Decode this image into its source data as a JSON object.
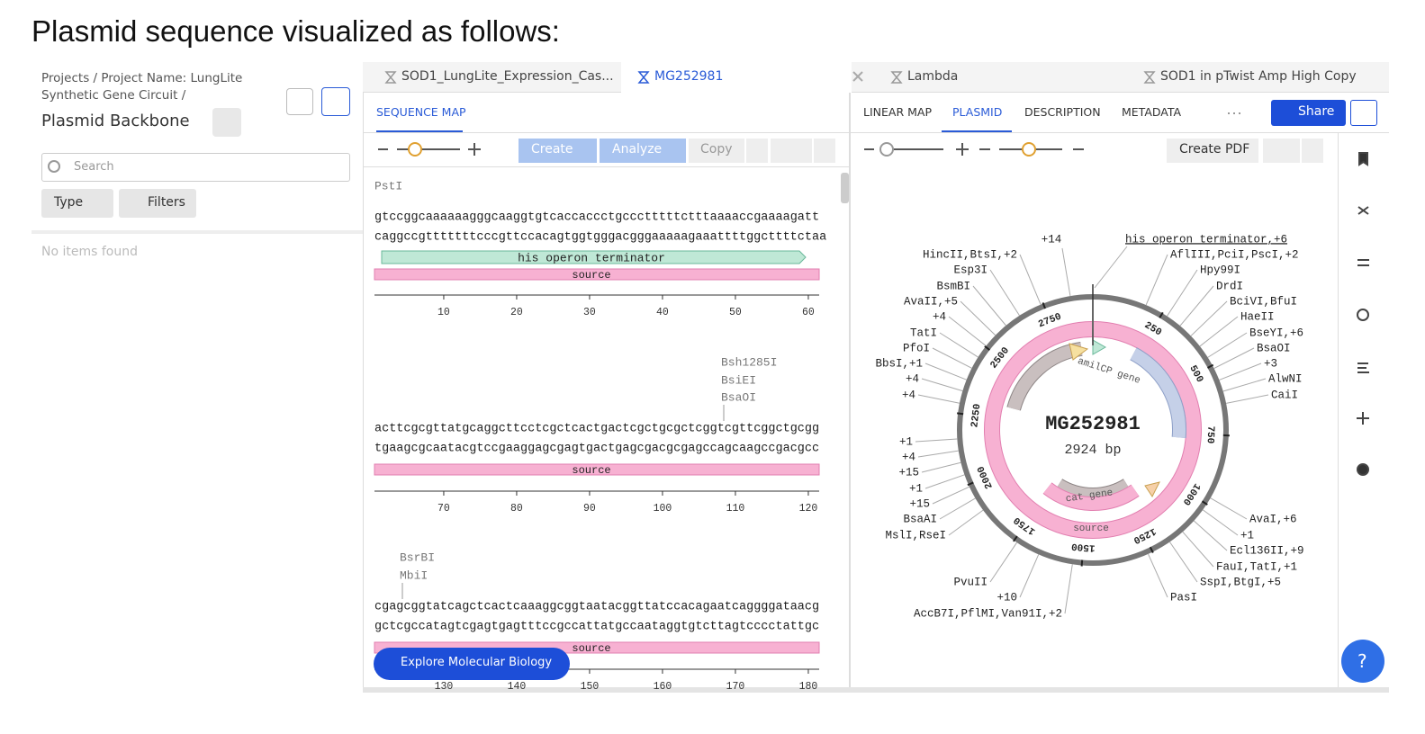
{
  "heading": "Plasmid sequence visualized as follows:",
  "sidebar": {
    "breadcrumb": "Projects / Project Name: LungLite Synthetic Gene Circuit /",
    "title": "Plasmid Backbone",
    "search_placeholder": "Search",
    "buttons": [
      "Type",
      "Filters"
    ],
    "empty_message": "No items found"
  },
  "tabs": [
    "SOD1_LungLite_Expression_Cas...",
    "MG252981",
    "Lambda",
    "SOD1 in pTwist Amp High Copy"
  ],
  "sequence_panel": {
    "tab": "SEQUENCE MAP",
    "toolbar": [
      "Create",
      "Analyze",
      "Copy"
    ],
    "rows": [
      {
        "enzymes": [
          "PstI"
        ],
        "top": "gtccggcaaaaaagggcaaggtgtcaccaccctgccctttttctttaaaaccgaaaagatt",
        "bottom": "caggccgtttttttcccgttccacagtggtgggacgggaaaaagaaattttggcttttctaa",
        "features": [
          {
            "label": "his operon terminator",
            "color": "#bfe8d6"
          },
          {
            "label": "source",
            "color": "#f7b1d2"
          }
        ],
        "ruler": [
          10,
          20,
          30,
          40,
          50,
          60
        ]
      },
      {
        "enzymes": [
          "Bsh1285I",
          "BsiEI",
          "BsaOI"
        ],
        "top": "acttcgcgttatgcaggcttcctcgctcactgactcgctgcgctcggtcgttcggctgcgg",
        "bottom": "tgaagcgcaatacgtccgaaggagcgagtgactgagcgacgcgagccagcaagccgacgcc",
        "features": [
          {
            "label": "source",
            "color": "#f7b1d2"
          }
        ],
        "ruler": [
          70,
          80,
          90,
          100,
          110,
          120
        ]
      },
      {
        "enzymes": [
          "BsrBI",
          "MbiI"
        ],
        "top": "cgagcggtatcagctcactcaaaggcggtaatacggttatccacagaatcaggggataacg",
        "bottom": "gctcgccatagtcgagtgagtttccgccattatgccaataggtgtcttagtcccctattgc",
        "features": [
          {
            "label": "source",
            "color": "#f7b1d2"
          }
        ],
        "ruler": [
          130,
          140,
          150,
          160,
          170,
          180
        ]
      }
    ]
  },
  "plasmid_panel": {
    "tabs": [
      "LINEAR MAP",
      "PLASMID",
      "DESCRIPTION",
      "METADATA"
    ],
    "share": "Share",
    "create_pdf": "Create PDF",
    "map": {
      "name": "MG252981",
      "length": "2924 bp",
      "ring_ticks": [
        250,
        500,
        750,
        1000,
        1250,
        1500,
        1750,
        2000,
        2250,
        2500,
        2750
      ],
      "features": [
        "amilCP gene",
        "cat gene",
        "source"
      ],
      "labels_top": [
        "+14",
        "his operon terminator,+6"
      ],
      "labels_left": [
        "HincII,BtsI,+2",
        "Esp3I",
        "BsmBI",
        "AvaII,+5",
        "+4",
        "TatI",
        "PfoI",
        "BbsI,+1",
        "+4",
        "+4",
        "+1",
        "+4",
        "+15",
        "+1",
        "+15",
        "BsaAI",
        "MslI,RseI",
        "PvuII",
        "+10",
        "AccB7I,PflMI,Van91I,+2"
      ],
      "labels_right": [
        "AflIII,PciI,PscI,+2",
        "Hpy99I",
        "DrdI",
        "BciVI,BfuI",
        "HaeII",
        "BseYI,+6",
        "BsaOI",
        "+3",
        "AlwNI",
        "CaiI",
        "AvaI,+6",
        "+1",
        "Ecl136II,+9",
        "FauI,TatI,+1",
        "SspI,BtgI,+5",
        "PasI"
      ]
    }
  },
  "chip": "Explore Molecular Biology",
  "help": "?"
}
